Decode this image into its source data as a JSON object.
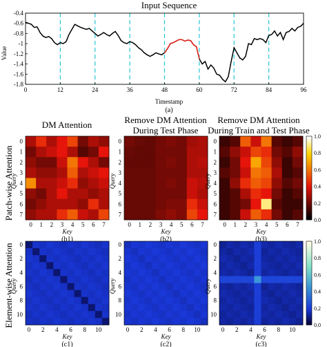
{
  "chart_data": [
    {
      "type": "line",
      "title": "Input Sequence",
      "xlabel": "Timestamp",
      "ylabel": "Value",
      "xlim": [
        0,
        96
      ],
      "ylim": [
        -1.8,
        -0.4
      ],
      "xticks": [
        "0",
        "12",
        "24",
        "36",
        "48",
        "60",
        "72",
        "84",
        "96"
      ],
      "yticks": [
        "-0.4",
        "-0.6",
        "-0.8",
        "-1",
        "-1.2",
        "-1.4",
        "-1.6",
        "-1.8"
      ],
      "grid": "dashed vertical cyan lines every 12 steps",
      "highlight_range": [
        48,
        60
      ],
      "series": [
        {
          "values": [
            -0.58,
            -0.6,
            -0.62,
            -0.68,
            -0.67,
            -0.78,
            -0.85,
            -0.88,
            -0.86,
            -0.9,
            -0.98,
            -1.02,
            -0.98,
            -1.0,
            -0.96,
            -0.82,
            -0.72,
            -0.62,
            -0.65,
            -0.68,
            -0.7,
            -0.72,
            -0.7,
            -0.75,
            -0.8,
            -0.85,
            -0.82,
            -0.78,
            -0.82,
            -0.85,
            -0.8,
            -0.76,
            -0.84,
            -0.94,
            -0.98,
            -1.0,
            -0.96,
            -0.98,
            -1.02,
            -1.08,
            -1.12,
            -1.18,
            -1.22,
            -1.25,
            -1.22,
            -1.18,
            -1.2,
            -1.22,
            -1.18,
            -1.1,
            -1.0,
            -0.98,
            -0.95,
            -0.92,
            -0.92,
            -0.95,
            -0.93,
            -0.94,
            -1.02,
            -1.06,
            -1.3,
            -1.4,
            -1.35,
            -1.5,
            -1.42,
            -1.48,
            -1.6,
            -1.62,
            -1.7,
            -1.75,
            -1.65,
            -1.35,
            -1.08,
            -1.18,
            -1.28,
            -1.32,
            -1.25,
            -1.0,
            -1.02,
            -0.9,
            -0.92,
            -0.9,
            -0.92,
            -0.98,
            -0.84,
            -0.82,
            -0.75,
            -0.85,
            -0.78,
            -0.92,
            -0.78,
            -0.76,
            -0.7,
            -0.75,
            -0.68,
            -0.66,
            -0.6
          ]
        }
      ]
    },
    {
      "type": "heatmap",
      "title": "DM Attention",
      "xlabel": "Key",
      "ylabel": "Query",
      "ticks": [
        "0",
        "1",
        "2",
        "3",
        "4",
        "5",
        "6",
        "7"
      ],
      "caption": "(b1)",
      "values": [
        [
          0.3,
          0.45,
          0.3,
          0.4,
          0.5,
          0.2,
          0.3,
          0.25
        ],
        [
          0.2,
          0.3,
          0.35,
          0.4,
          0.3,
          0.15,
          0.2,
          0.4
        ],
        [
          0.25,
          0.2,
          0.2,
          0.35,
          0.6,
          0.4,
          0.3,
          0.2
        ],
        [
          0.3,
          0.25,
          0.25,
          0.3,
          0.55,
          0.3,
          0.35,
          0.4
        ],
        [
          0.65,
          0.3,
          0.3,
          0.35,
          0.45,
          0.25,
          0.3,
          0.35
        ],
        [
          0.25,
          0.2,
          0.3,
          0.4,
          0.3,
          0.3,
          0.25,
          0.3
        ],
        [
          0.2,
          0.25,
          0.3,
          0.3,
          0.3,
          0.25,
          0.45,
          0.3
        ],
        [
          0.25,
          0.3,
          0.3,
          0.45,
          0.55,
          0.35,
          0.3,
          0.5
        ]
      ]
    },
    {
      "type": "heatmap",
      "title": "Remove DM Attention",
      "subtitle": "During Test Phase",
      "xlabel": "Key",
      "ylabel": "Query",
      "ticks": [
        "0",
        "1",
        "2",
        "3",
        "4",
        "5",
        "6",
        "7"
      ],
      "caption": "(b2)",
      "values": [
        [
          0.2,
          0.18,
          0.17,
          0.2,
          0.22,
          0.2,
          0.28,
          0.3
        ],
        [
          0.18,
          0.17,
          0.17,
          0.2,
          0.2,
          0.2,
          0.3,
          0.3
        ],
        [
          0.17,
          0.17,
          0.17,
          0.2,
          0.22,
          0.2,
          0.3,
          0.32
        ],
        [
          0.18,
          0.18,
          0.18,
          0.2,
          0.2,
          0.2,
          0.3,
          0.3
        ],
        [
          0.18,
          0.18,
          0.18,
          0.2,
          0.22,
          0.2,
          0.35,
          0.32
        ],
        [
          0.18,
          0.18,
          0.18,
          0.2,
          0.2,
          0.2,
          0.35,
          0.3
        ],
        [
          0.18,
          0.18,
          0.18,
          0.2,
          0.22,
          0.22,
          0.45,
          0.35
        ],
        [
          0.18,
          0.18,
          0.18,
          0.22,
          0.25,
          0.22,
          0.5,
          0.4
        ]
      ]
    },
    {
      "type": "heatmap",
      "title": "Remove DM Attention",
      "subtitle": "During Train and Test Phase",
      "xlabel": "Key",
      "ylabel": "Query",
      "ticks": [
        "0",
        "1",
        "2",
        "3",
        "4",
        "5",
        "6",
        "7"
      ],
      "caption": "(b3)",
      "colorbar": {
        "min": 0.0,
        "max": 1.0,
        "ticks": [
          "0.0",
          "0.2",
          "0.4",
          "0.6",
          "0.8",
          "1.0"
        ]
      },
      "values": [
        [
          0.1,
          0.15,
          0.55,
          0.35,
          0.6,
          0.15,
          0.1,
          0.15
        ],
        [
          0.15,
          0.25,
          0.35,
          0.5,
          0.45,
          0.2,
          0.15,
          0.25
        ],
        [
          0.1,
          0.2,
          0.4,
          0.7,
          0.5,
          0.25,
          0.1,
          0.2
        ],
        [
          0.15,
          0.2,
          0.35,
          0.6,
          0.55,
          0.3,
          0.1,
          0.15
        ],
        [
          0.1,
          0.25,
          0.45,
          0.55,
          0.5,
          0.25,
          0.15,
          0.2
        ],
        [
          0.1,
          0.15,
          0.3,
          0.45,
          0.4,
          0.2,
          0.1,
          0.15
        ],
        [
          0.1,
          0.15,
          0.2,
          0.4,
          0.9,
          0.15,
          0.1,
          0.1
        ],
        [
          0.1,
          0.15,
          0.35,
          0.55,
          0.45,
          0.2,
          0.1,
          0.15
        ]
      ]
    },
    {
      "type": "heatmap",
      "xlabel": "Key",
      "ylabel": "Query",
      "ticks": [
        "0",
        "2",
        "4",
        "6",
        "8",
        "10"
      ],
      "caption": "(c1)",
      "size": 12,
      "base": 0.16,
      "diagonal": 0.06
    },
    {
      "type": "heatmap",
      "xlabel": "Key",
      "ylabel": "Query",
      "ticks": [
        "0",
        "2",
        "4",
        "6",
        "8",
        "10"
      ],
      "caption": "(c2)",
      "size": 12,
      "base": 0.17,
      "diagonal": 0.15
    },
    {
      "type": "heatmap",
      "xlabel": "Key",
      "ylabel": "Query",
      "ticks": [
        "0",
        "2",
        "4",
        "6",
        "8",
        "10"
      ],
      "caption": "(c3)",
      "size": 12,
      "base": 0.12,
      "diagonal": 0.1,
      "highlight_column": 5,
      "highlight_value": 0.45,
      "highlight_row": 5,
      "highlight_row_value": 0.22,
      "colorbar": {
        "min": 0.0,
        "max": 1.0,
        "ticks": [
          "0.0",
          "0.2",
          "0.4",
          "0.6",
          "0.8",
          "1.0"
        ]
      }
    }
  ],
  "row_labels": [
    "Patch-wise Attention",
    "Element-wise Attention"
  ],
  "caption_a": "(a)"
}
